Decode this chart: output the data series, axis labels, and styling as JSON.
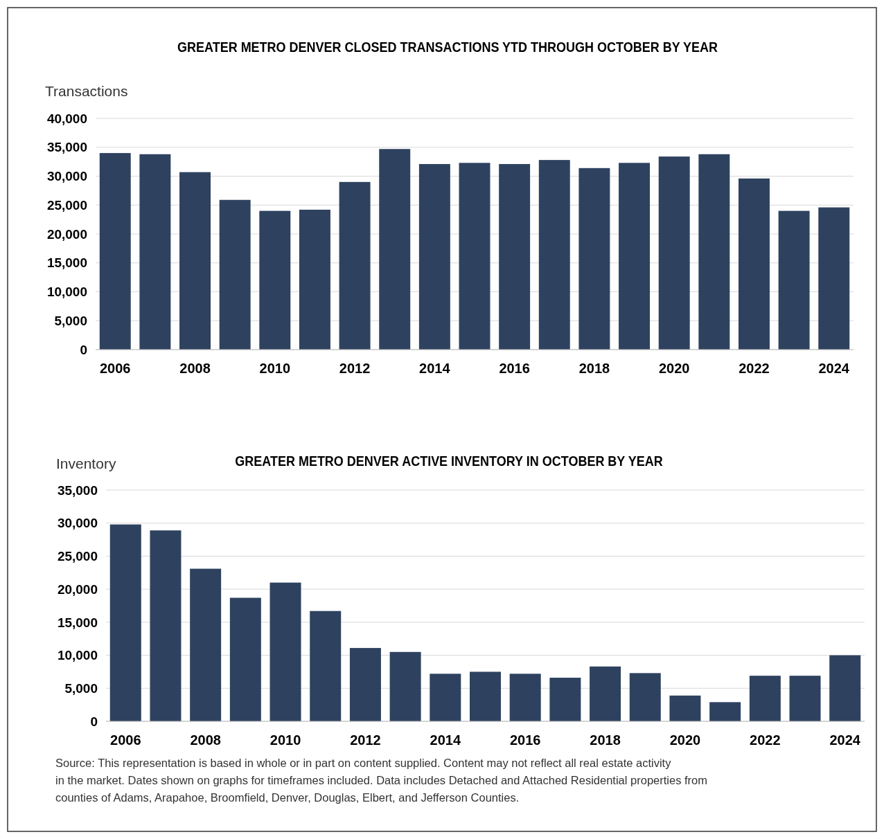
{
  "chart_data": [
    {
      "type": "bar",
      "title": "GREATER METRO DENVER CLOSED TRANSACTIONS YTD THROUGH OCTOBER BY YEAR",
      "ylabel": "Transactions",
      "categories": [
        "2006",
        null,
        "2008",
        null,
        "2010",
        null,
        "2012",
        null,
        "2014",
        null,
        "2016",
        null,
        "2018",
        null,
        "2020",
        null,
        "2022",
        null,
        "2024"
      ],
      "color": "#2e4260",
      "values": [
        34000,
        33800,
        30700,
        25900,
        24000,
        24200,
        29000,
        34700,
        32100,
        32300,
        32100,
        32800,
        31400,
        32300,
        33400,
        33800,
        29600,
        24000,
        24600
      ],
      "ylim": [
        0,
        40000
      ],
      "yticks": [
        {
          "value": 0,
          "label": "0"
        },
        {
          "value": 5000,
          "label": "5,000"
        },
        {
          "value": 10000,
          "label": "10,000"
        },
        {
          "value": 15000,
          "label": "15,000"
        },
        {
          "value": 20000,
          "label": "20,000"
        },
        {
          "value": 25000,
          "label": "25,000"
        },
        {
          "value": 30000,
          "label": "30,000"
        },
        {
          "value": 35000,
          "label": "35,000"
        },
        {
          "value": 40000,
          "label": "40,000"
        }
      ],
      "grid": "y"
    },
    {
      "type": "bar",
      "title": "GREATER METRO DENVER ACTIVE INVENTORY IN OCTOBER BY YEAR",
      "ylabel": "Inventory",
      "categories": [
        "2006",
        null,
        "2008",
        null,
        "2010",
        null,
        "2012",
        null,
        "2014",
        null,
        "2016",
        null,
        "2018",
        null,
        "2020",
        null,
        "2022",
        null,
        "2024"
      ],
      "color": "#2e4260",
      "values": [
        29800,
        28900,
        23100,
        18700,
        21000,
        16700,
        11100,
        10500,
        7200,
        7500,
        7200,
        6600,
        8300,
        7300,
        3900,
        2900,
        6900,
        6900,
        10000
      ],
      "ylim": [
        0,
        35000
      ],
      "yticks": [
        {
          "value": 0,
          "label": "0"
        },
        {
          "value": 5000,
          "label": "5,000"
        },
        {
          "value": 10000,
          "label": "10,000"
        },
        {
          "value": 15000,
          "label": "15,000"
        },
        {
          "value": 20000,
          "label": "20,000"
        },
        {
          "value": 25000,
          "label": "25,000"
        },
        {
          "value": 30000,
          "label": "30,000"
        },
        {
          "value": 35000,
          "label": "35,000"
        }
      ],
      "grid": "y",
      "annotations": [
        "Source: This representation is based in whole or in part on content supplied. Content may not reflect all real estate activity in the market. Dates shown on graphs for timeframes included. Data includes Detached and Attached Residential properties from counties of Adams, Arapahoe, Broomfield, Denver, Douglas, Elbert, and Jefferson Counties."
      ]
    }
  ]
}
